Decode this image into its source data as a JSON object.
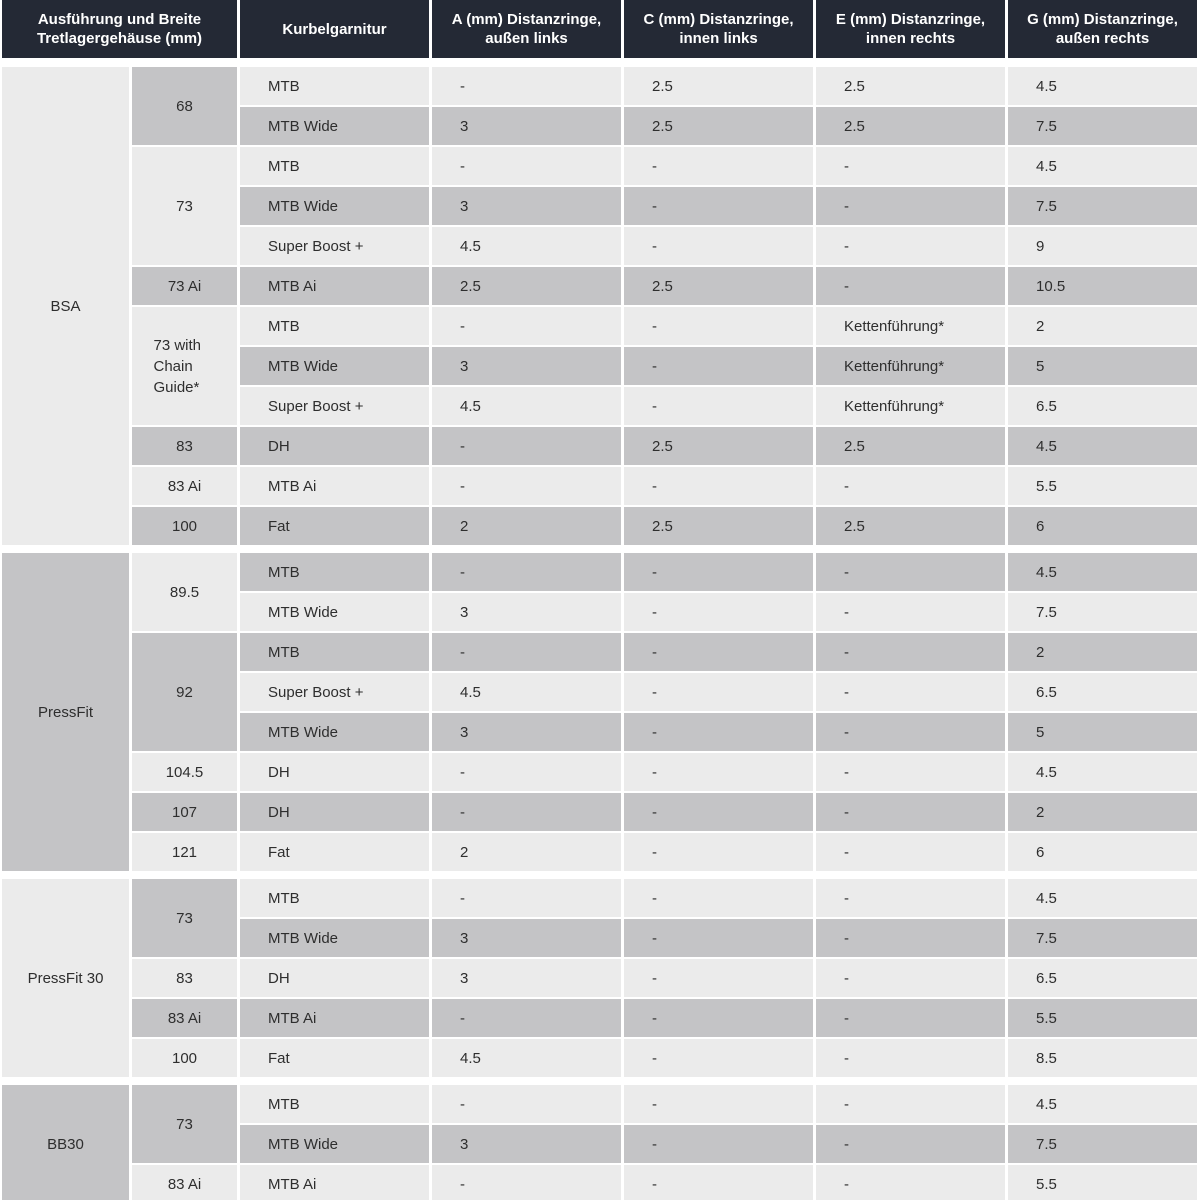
{
  "colors": {
    "header_bg": "#242935",
    "header_text": "#ffffff",
    "row_light": "#ebebeb",
    "row_dark": "#c4c4c6",
    "body_text": "#2e2e2e"
  },
  "table": {
    "columns": [
      {
        "key": "group_width",
        "label": "Ausführung und Breite Tretlagergehäuse (mm)"
      },
      {
        "key": "crank",
        "label": "Kurbelgarnitur"
      },
      {
        "key": "a",
        "label": "A (mm) Distanzringe, außen links"
      },
      {
        "key": "c",
        "label": "C (mm) Distanzringe, innen links"
      },
      {
        "key": "e",
        "label": "E (mm) Distanzringe, innen rechts"
      },
      {
        "key": "g",
        "label": "G (mm) Distanzringe, außen rechts"
      }
    ],
    "sections": [
      {
        "name": "BSA",
        "shade": "light",
        "widths": [
          {
            "label": "68",
            "shade": "dark",
            "rows": [
              {
                "crank": "MTB",
                "a": "-",
                "c": "2.5",
                "e": "2.5",
                "g": "4.5",
                "shade": "light"
              },
              {
                "crank": "MTB Wide",
                "a": "3",
                "c": "2.5",
                "e": "2.5",
                "g": "7.5",
                "shade": "dark"
              }
            ]
          },
          {
            "label": "73",
            "shade": "light",
            "rows": [
              {
                "crank": "MTB",
                "a": "-",
                "c": "-",
                "e": "-",
                "g": "4.5",
                "shade": "light"
              },
              {
                "crank": "MTB Wide",
                "a": "3",
                "c": "-",
                "e": "-",
                "g": "7.5",
                "shade": "dark"
              },
              {
                "crank": "Super Boost +",
                "a": "4.5",
                "c": "-",
                "e": "-",
                "g": "9",
                "shade": "light"
              }
            ]
          },
          {
            "label": "73 Ai",
            "shade": "dark",
            "rows": [
              {
                "crank": "MTB Ai",
                "a": "2.5",
                "c": "2.5",
                "e": "-",
                "g": "10.5",
                "shade": "dark"
              }
            ]
          },
          {
            "label": "73 with Chain Guide*",
            "shade": "light",
            "rows": [
              {
                "crank": "MTB",
                "a": "-",
                "c": "-",
                "e": "Kettenführung*",
                "g": "2",
                "shade": "light"
              },
              {
                "crank": "MTB Wide",
                "a": "3",
                "c": "-",
                "e": "Kettenführung*",
                "g": "5",
                "shade": "dark"
              },
              {
                "crank": "Super Boost +",
                "a": "4.5",
                "c": "-",
                "e": "Kettenführung*",
                "g": "6.5",
                "shade": "light"
              }
            ]
          },
          {
            "label": "83",
            "shade": "dark",
            "rows": [
              {
                "crank": "DH",
                "a": "-",
                "c": "2.5",
                "e": "2.5",
                "g": "4.5",
                "shade": "dark"
              }
            ]
          },
          {
            "label": "83 Ai",
            "shade": "light",
            "rows": [
              {
                "crank": "MTB Ai",
                "a": "-",
                "c": "-",
                "e": "-",
                "g": "5.5",
                "shade": "light"
              }
            ]
          },
          {
            "label": "100",
            "shade": "dark",
            "rows": [
              {
                "crank": "Fat",
                "a": "2",
                "c": "2.5",
                "e": "2.5",
                "g": "6",
                "shade": "dark"
              }
            ]
          }
        ]
      },
      {
        "name": "PressFit",
        "shade": "dark",
        "widths": [
          {
            "label": "89.5",
            "shade": "light",
            "rows": [
              {
                "crank": "MTB",
                "a": "-",
                "c": "-",
                "e": "-",
                "g": "4.5",
                "shade": "dark"
              },
              {
                "crank": "MTB Wide",
                "a": "3",
                "c": "-",
                "e": "-",
                "g": "7.5",
                "shade": "light"
              }
            ]
          },
          {
            "label": "92",
            "shade": "dark",
            "rows": [
              {
                "crank": "MTB",
                "a": "-",
                "c": "-",
                "e": "-",
                "g": "2",
                "shade": "dark"
              },
              {
                "crank": "Super Boost +",
                "a": "4.5",
                "c": "-",
                "e": "-",
                "g": "6.5",
                "shade": "light"
              },
              {
                "crank": "MTB Wide",
                "a": "3",
                "c": "-",
                "e": "-",
                "g": "5",
                "shade": "dark"
              }
            ]
          },
          {
            "label": "104.5",
            "shade": "light",
            "rows": [
              {
                "crank": "DH",
                "a": "-",
                "c": "-",
                "e": "-",
                "g": "4.5",
                "shade": "light"
              }
            ]
          },
          {
            "label": "107",
            "shade": "dark",
            "rows": [
              {
                "crank": "DH",
                "a": "-",
                "c": "-",
                "e": "-",
                "g": "2",
                "shade": "dark"
              }
            ]
          },
          {
            "label": "121",
            "shade": "light",
            "rows": [
              {
                "crank": "Fat",
                "a": "2",
                "c": "-",
                "e": "-",
                "g": "6",
                "shade": "light"
              }
            ]
          }
        ]
      },
      {
        "name": "PressFit 30",
        "shade": "light",
        "widths": [
          {
            "label": "73",
            "shade": "dark",
            "rows": [
              {
                "crank": "MTB",
                "a": "-",
                "c": "-",
                "e": "-",
                "g": "4.5",
                "shade": "light"
              },
              {
                "crank": "MTB Wide",
                "a": "3",
                "c": "-",
                "e": "-",
                "g": "7.5",
                "shade": "dark"
              }
            ]
          },
          {
            "label": "83",
            "shade": "light",
            "rows": [
              {
                "crank": "DH",
                "a": "3",
                "c": "-",
                "e": "-",
                "g": "6.5",
                "shade": "light"
              }
            ]
          },
          {
            "label": "83 Ai",
            "shade": "dark",
            "rows": [
              {
                "crank": "MTB Ai",
                "a": "-",
                "c": "-",
                "e": "-",
                "g": "5.5",
                "shade": "dark"
              }
            ]
          },
          {
            "label": "100",
            "shade": "light",
            "rows": [
              {
                "crank": "Fat",
                "a": "4.5",
                "c": "-",
                "e": "-",
                "g": "8.5",
                "shade": "light"
              }
            ]
          }
        ]
      },
      {
        "name": "BB30",
        "shade": "dark",
        "widths": [
          {
            "label": "73",
            "shade": "dark",
            "rows": [
              {
                "crank": "MTB",
                "a": "-",
                "c": "-",
                "e": "-",
                "g": "4.5",
                "shade": "light"
              },
              {
                "crank": "MTB Wide",
                "a": "3",
                "c": "-",
                "e": "-",
                "g": "7.5",
                "shade": "dark"
              }
            ]
          },
          {
            "label": "83 Ai",
            "shade": "light",
            "rows": [
              {
                "crank": "MTB Ai",
                "a": "-",
                "c": "-",
                "e": "-",
                "g": "5.5",
                "shade": "light"
              }
            ]
          }
        ]
      }
    ]
  }
}
